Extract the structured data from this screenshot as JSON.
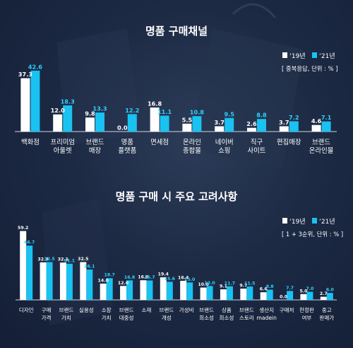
{
  "colors": {
    "y19": "#ffffff",
    "y21": "#19c2f1",
    "y21_label": "#2fd0ff",
    "background": "#1d2a44"
  },
  "chart_data": [
    {
      "type": "bar",
      "title": "명품 구매채널",
      "legend": {
        "entries": [
          "‘19년",
          "‘21년"
        ],
        "note": "[ 중복응답, 단위 : % ]",
        "placement": "top-right"
      },
      "categories": [
        "백화점",
        "프리미엄\n아울렛",
        "브랜드\n매장",
        "명품\n플랫폼",
        "면세점",
        "온라인\n종합몰",
        "네이버\n쇼핑",
        "직구\n사이트",
        "편집매장",
        "브랜드\n온라인몰"
      ],
      "series": [
        {
          "name": "‘19년",
          "values": [
            37.3,
            12.0,
            9.8,
            0.0,
            16.8,
            5.5,
            3.7,
            2.6,
            3.7,
            4.6
          ]
        },
        {
          "name": "‘21년",
          "values": [
            42.6,
            18.3,
            13.3,
            12.2,
            11.1,
            10.8,
            9.5,
            8.8,
            7.2,
            7.1
          ]
        }
      ],
      "ylim": [
        0,
        45
      ]
    },
    {
      "type": "bar",
      "title": "명품 구매 시 주요 고려사항",
      "legend": {
        "entries": [
          "‘19년",
          "‘21년"
        ],
        "note": "[ 1 + 3순위, 단위 : % ]",
        "placement": "top-right"
      },
      "categories": [
        "디자인",
        "구매\n가격",
        "브랜드\n가치",
        "실용성",
        "소장\n가치",
        "브랜드\n대중성",
        "소재",
        "브랜드\n개성",
        "가성비",
        "브랜드\n희소성",
        "상품\n희소성",
        "브랜드\n스토리",
        "생산지\nmadein",
        "구매처",
        "한정판\n여부",
        "중고\n판매가"
      ],
      "series": [
        {
          "name": "‘19년",
          "values": [
            59.2,
            32.3,
            32.1,
            32.5,
            14.0,
            12.0,
            16.9,
            19.4,
            16.4,
            10.6,
            9.1,
            9.7,
            6.6,
            0.0,
            5.0,
            2.7
          ]
        },
        {
          "name": "‘21년",
          "values": [
            46.7,
            32.5,
            31.1,
            26.1,
            18.7,
            16.8,
            16.7,
            15.6,
            15.0,
            12.0,
            11.7,
            11.5,
            8.8,
            7.7,
            7.0,
            6.0
          ]
        }
      ],
      "ylim": [
        0,
        62
      ]
    }
  ]
}
